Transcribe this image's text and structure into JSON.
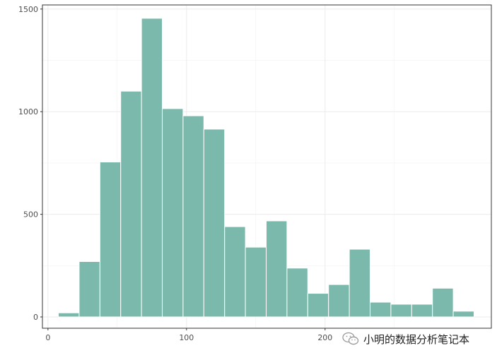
{
  "chart_data": {
    "type": "bar",
    "histogram": true,
    "bin_width": 15,
    "x": [
      15,
      30,
      45,
      60,
      75,
      90,
      105,
      120,
      135,
      150,
      165,
      180,
      195,
      210,
      225,
      240,
      255,
      270,
      285,
      300
    ],
    "values": [
      20,
      270,
      755,
      1100,
      1455,
      1015,
      980,
      915,
      440,
      340,
      468,
      238,
      115,
      158,
      330,
      72,
      62,
      62,
      140,
      28
    ],
    "title": "",
    "xlabel": "",
    "ylabel": "",
    "xlim": [
      -4,
      320
    ],
    "ylim": [
      -55,
      1520
    ],
    "x_ticks": [
      0,
      100,
      200
    ],
    "x_tick_labels": [
      "0",
      "100",
      "200"
    ],
    "y_ticks": [
      0,
      500,
      1000,
      1500
    ],
    "y_tick_labels": [
      "0",
      "500",
      "1000",
      "1500"
    ],
    "grid": true,
    "colors": {
      "bar_fill": "#7ab9ab",
      "bar_stroke": "#ffffff",
      "grid_major": "#ebebeb",
      "grid_minor": "#f2f2f2",
      "panel_border": "#333333",
      "tick_text": "#4d4d4d"
    }
  },
  "watermark": {
    "icon": "wechat-icon",
    "text": "小明的数据分析笔记本"
  }
}
